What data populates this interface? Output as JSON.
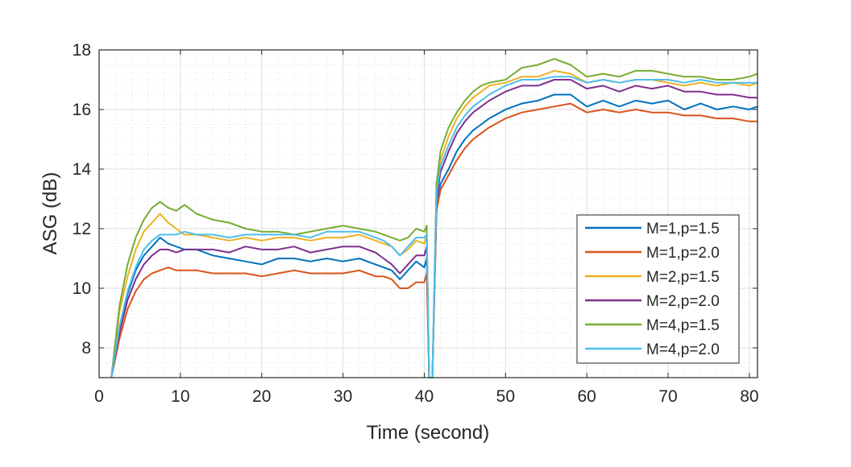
{
  "chart_data": {
    "type": "line",
    "xlabel": "Time (second)",
    "ylabel": "ASG (dB)",
    "xlim": [
      0,
      81
    ],
    "ylim": [
      7,
      18
    ],
    "xticks": [
      0,
      10,
      20,
      30,
      40,
      50,
      60,
      70,
      80
    ],
    "yticks": [
      8,
      10,
      12,
      14,
      16,
      18
    ],
    "grid": true,
    "minor_grid": true,
    "legend_position": "right-center",
    "series": [
      {
        "name": "M=1,p=1.5",
        "color": "#0072BD",
        "x": [
          1.5,
          2.5,
          3.5,
          4.5,
          5.5,
          6.5,
          7.5,
          8.5,
          9.5,
          10.5,
          12,
          14,
          16,
          18,
          20,
          22,
          24,
          26,
          28,
          30,
          32,
          34,
          35,
          36,
          37,
          38,
          39,
          40,
          40.3,
          40.6,
          41.0,
          41.5,
          42,
          43,
          44,
          45,
          46,
          47,
          48,
          50,
          52,
          54,
          56,
          58,
          60,
          62,
          64,
          66,
          68,
          70,
          72,
          74,
          76,
          78,
          80,
          81
        ],
        "y": [
          7.0,
          8.7,
          9.8,
          10.6,
          11.1,
          11.4,
          11.7,
          11.5,
          11.4,
          11.3,
          11.3,
          11.1,
          11.0,
          10.9,
          10.8,
          11.0,
          11.0,
          10.9,
          11.0,
          10.9,
          11.0,
          10.8,
          10.7,
          10.6,
          10.3,
          10.6,
          10.9,
          10.7,
          11.0,
          7.0,
          7.0,
          12.6,
          13.5,
          14.0,
          14.6,
          15.0,
          15.3,
          15.5,
          15.7,
          16.0,
          16.2,
          16.3,
          16.5,
          16.5,
          16.1,
          16.3,
          16.1,
          16.3,
          16.2,
          16.3,
          16.0,
          16.2,
          16.0,
          16.1,
          16.0,
          16.1
        ]
      },
      {
        "name": "M=1,p=2.0",
        "color": "#D95319",
        "x": [
          1.5,
          2.5,
          3.5,
          4.5,
          5.5,
          6.5,
          7.5,
          8.5,
          9.5,
          10.5,
          12,
          14,
          16,
          18,
          20,
          22,
          24,
          26,
          28,
          30,
          32,
          34,
          35,
          36,
          37,
          38,
          39,
          40,
          40.3,
          40.6,
          41.0,
          41.5,
          42,
          43,
          44,
          45,
          46,
          47,
          48,
          50,
          52,
          54,
          56,
          58,
          60,
          62,
          64,
          66,
          68,
          70,
          72,
          74,
          76,
          78,
          80,
          81
        ],
        "y": [
          7.0,
          8.3,
          9.3,
          9.9,
          10.3,
          10.5,
          10.6,
          10.7,
          10.6,
          10.6,
          10.6,
          10.5,
          10.5,
          10.5,
          10.4,
          10.5,
          10.6,
          10.5,
          10.5,
          10.5,
          10.6,
          10.4,
          10.4,
          10.3,
          10.0,
          10.0,
          10.2,
          10.2,
          10.5,
          7.0,
          7.0,
          12.6,
          13.3,
          13.8,
          14.3,
          14.7,
          15.0,
          15.2,
          15.4,
          15.7,
          15.9,
          16.0,
          16.1,
          16.2,
          15.9,
          16.0,
          15.9,
          16.0,
          15.9,
          15.9,
          15.8,
          15.8,
          15.7,
          15.7,
          15.6,
          15.6
        ]
      },
      {
        "name": "M=2,p=1.5",
        "color": "#EDB120",
        "x": [
          1.5,
          2.5,
          3.5,
          4.5,
          5.5,
          6.5,
          7.5,
          8.5,
          9.5,
          10.5,
          12,
          14,
          16,
          18,
          20,
          22,
          24,
          26,
          28,
          30,
          32,
          34,
          35,
          36,
          37,
          38,
          39,
          40,
          40.3,
          40.6,
          41.0,
          41.5,
          42,
          43,
          44,
          45,
          46,
          47,
          48,
          50,
          52,
          54,
          56,
          58,
          60,
          62,
          64,
          66,
          68,
          70,
          72,
          74,
          76,
          78,
          80,
          81
        ],
        "y": [
          7.0,
          9.2,
          10.4,
          11.3,
          11.9,
          12.2,
          12.5,
          12.2,
          12.0,
          11.8,
          11.8,
          11.7,
          11.6,
          11.7,
          11.6,
          11.7,
          11.7,
          11.6,
          11.7,
          11.7,
          11.8,
          11.6,
          11.5,
          11.4,
          11.1,
          11.3,
          11.6,
          11.5,
          11.8,
          7.0,
          7.0,
          13.3,
          14.3,
          15.1,
          15.7,
          16.1,
          16.4,
          16.6,
          16.8,
          16.9,
          17.1,
          17.1,
          17.3,
          17.2,
          16.9,
          17.0,
          16.9,
          17.0,
          17.0,
          16.9,
          16.8,
          16.9,
          16.8,
          16.9,
          16.8,
          16.9
        ]
      },
      {
        "name": "M=2,p=2.0",
        "color": "#7E2F8E",
        "x": [
          1.5,
          2.5,
          3.5,
          4.5,
          5.5,
          6.5,
          7.5,
          8.5,
          9.5,
          10.5,
          12,
          14,
          16,
          18,
          20,
          22,
          24,
          26,
          28,
          30,
          32,
          34,
          35,
          36,
          37,
          38,
          39,
          40,
          40.3,
          40.6,
          41.0,
          41.5,
          42,
          43,
          44,
          45,
          46,
          47,
          48,
          50,
          52,
          54,
          56,
          58,
          60,
          62,
          64,
          66,
          68,
          70,
          72,
          74,
          76,
          78,
          80,
          81
        ],
        "y": [
          7.0,
          8.5,
          9.6,
          10.3,
          10.8,
          11.1,
          11.3,
          11.3,
          11.2,
          11.3,
          11.3,
          11.3,
          11.2,
          11.4,
          11.3,
          11.3,
          11.4,
          11.2,
          11.3,
          11.4,
          11.4,
          11.2,
          11.0,
          10.8,
          10.5,
          10.8,
          11.1,
          11.1,
          11.4,
          7.0,
          7.0,
          13.0,
          13.9,
          14.6,
          15.2,
          15.6,
          15.9,
          16.1,
          16.3,
          16.6,
          16.8,
          16.8,
          17.0,
          17.0,
          16.7,
          16.8,
          16.6,
          16.8,
          16.7,
          16.8,
          16.6,
          16.6,
          16.5,
          16.5,
          16.4,
          16.4
        ]
      },
      {
        "name": "M=4,p=1.5",
        "color": "#77AC30",
        "x": [
          1.5,
          2.5,
          3.5,
          4.5,
          5.5,
          6.5,
          7.5,
          8.5,
          9.5,
          10.5,
          12,
          14,
          16,
          18,
          20,
          22,
          24,
          26,
          28,
          30,
          32,
          34,
          35,
          36,
          37,
          38,
          39,
          40,
          40.3,
          40.6,
          41.0,
          41.5,
          42,
          43,
          44,
          45,
          46,
          47,
          48,
          50,
          52,
          54,
          56,
          58,
          60,
          62,
          64,
          66,
          68,
          70,
          72,
          74,
          76,
          78,
          80,
          81
        ],
        "y": [
          7.0,
          9.4,
          10.8,
          11.7,
          12.3,
          12.7,
          12.9,
          12.7,
          12.6,
          12.8,
          12.5,
          12.3,
          12.2,
          12.0,
          11.9,
          11.9,
          11.8,
          11.9,
          12.0,
          12.1,
          12.0,
          11.9,
          11.8,
          11.7,
          11.6,
          11.7,
          12.0,
          11.9,
          12.1,
          7.0,
          7.0,
          13.5,
          14.6,
          15.4,
          15.9,
          16.3,
          16.6,
          16.8,
          16.9,
          17.0,
          17.4,
          17.5,
          17.7,
          17.5,
          17.1,
          17.2,
          17.1,
          17.3,
          17.3,
          17.2,
          17.1,
          17.1,
          17.0,
          17.0,
          17.1,
          17.2
        ]
      },
      {
        "name": "M=4,p=2.0",
        "color": "#4DBEEE",
        "x": [
          1.5,
          2.5,
          3.5,
          4.5,
          5.5,
          6.5,
          7.5,
          8.5,
          9.5,
          10.5,
          12,
          14,
          16,
          18,
          20,
          22,
          24,
          26,
          28,
          30,
          32,
          34,
          35,
          36,
          37,
          38,
          39,
          40,
          40.3,
          40.6,
          41.0,
          41.5,
          42,
          43,
          44,
          45,
          46,
          47,
          48,
          50,
          52,
          54,
          56,
          58,
          60,
          62,
          64,
          66,
          68,
          70,
          72,
          74,
          76,
          78,
          80,
          81
        ],
        "y": [
          7.0,
          8.7,
          9.9,
          10.7,
          11.3,
          11.6,
          11.8,
          11.8,
          11.8,
          11.9,
          11.8,
          11.8,
          11.7,
          11.8,
          11.8,
          11.8,
          11.8,
          11.7,
          11.9,
          11.9,
          11.9,
          11.7,
          11.6,
          11.4,
          11.1,
          11.4,
          11.7,
          11.7,
          11.8,
          7.0,
          7.0,
          13.2,
          14.1,
          14.8,
          15.4,
          15.8,
          16.1,
          16.3,
          16.5,
          16.8,
          17.0,
          17.0,
          17.1,
          17.1,
          16.9,
          17.0,
          16.9,
          17.0,
          17.0,
          17.0,
          16.9,
          17.0,
          16.9,
          16.9,
          16.9,
          16.9
        ]
      }
    ]
  }
}
